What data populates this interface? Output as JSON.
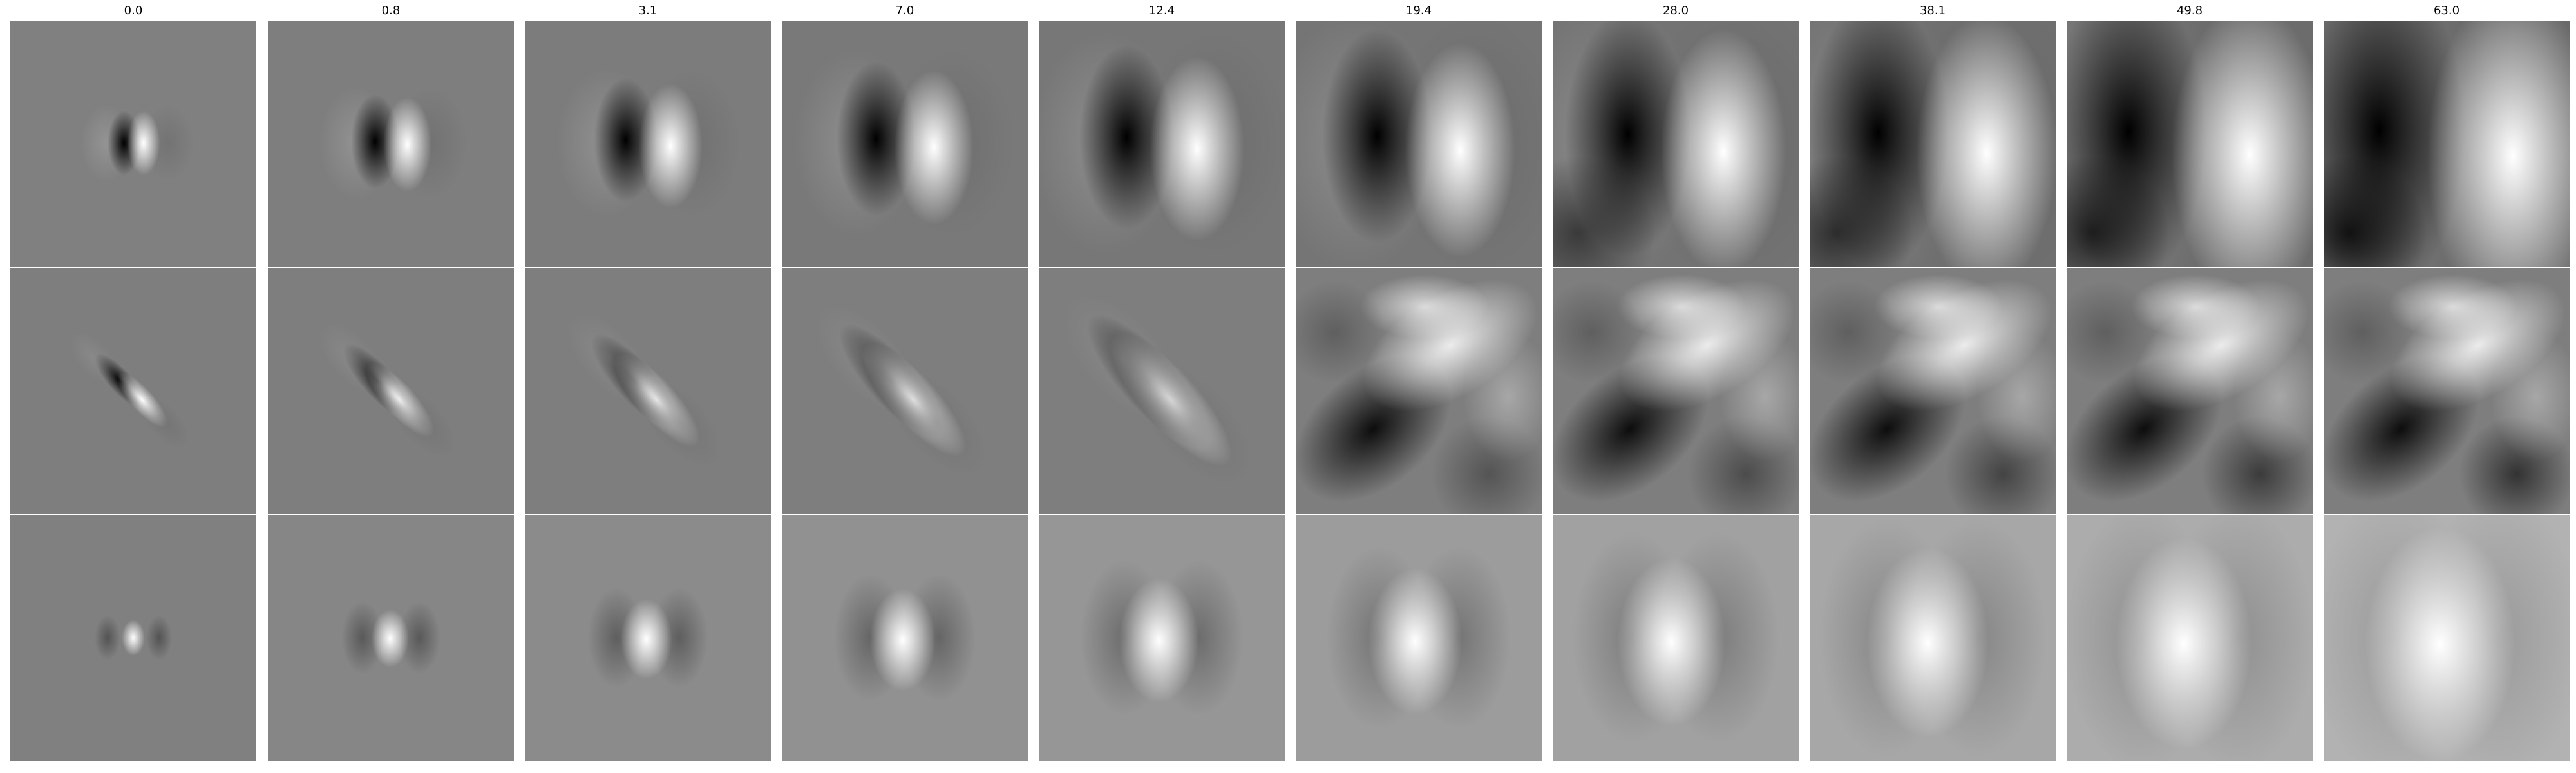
{
  "figure": {
    "column_titles": [
      "0.0",
      "0.8",
      "3.1",
      "7.0",
      "12.4",
      "19.4",
      "28.0",
      "38.1",
      "49.8",
      "63.0"
    ],
    "rows": 3,
    "colormap": "grayscale",
    "background_gray": "#808080"
  }
}
